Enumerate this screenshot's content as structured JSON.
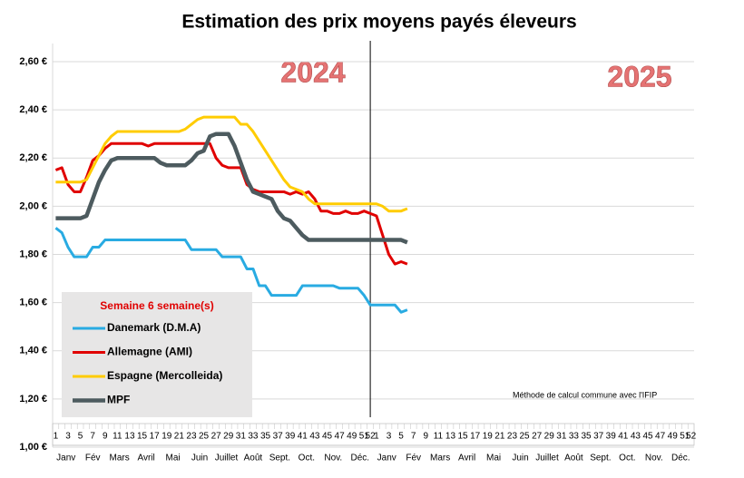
{
  "chart_data": {
    "type": "line",
    "title": "Estimation des prix moyens payés éleveurs",
    "categories": [
      "1",
      null,
      "3",
      null,
      "5",
      null,
      "7",
      null,
      "9",
      null,
      "11",
      null,
      "13",
      null,
      "15",
      null,
      "17",
      null,
      "19",
      null,
      "21",
      null,
      "23",
      null,
      "25",
      null,
      "27",
      null,
      "29",
      null,
      "31",
      null,
      "33",
      null,
      "35",
      null,
      "37",
      null,
      "39",
      null,
      "41",
      null,
      "43",
      null,
      "45",
      null,
      "47",
      null,
      "49",
      null,
      "51",
      "52",
      "1",
      null,
      "3",
      null,
      "5",
      null,
      "7",
      null,
      "9",
      null,
      "11",
      null,
      "13",
      null,
      "15",
      null,
      "17",
      null,
      "19",
      null,
      "21",
      null,
      "23",
      null,
      "25",
      null,
      "27",
      null,
      "29",
      null,
      "31",
      null,
      "33",
      null,
      "35",
      null,
      "37",
      null,
      "39",
      null,
      "41",
      null,
      "43",
      null,
      "45",
      null,
      "47",
      null,
      "49",
      null,
      "51",
      "52"
    ],
    "months": [
      "Janv",
      "Fév",
      "Mars",
      "Avril",
      "Mai",
      "Juin",
      "Juillet",
      "Août",
      "Sept.",
      "Oct.",
      "Nov.",
      "Déc.",
      "Janv",
      "Fév",
      "Mars",
      "Avril",
      "Mai",
      "Juin",
      "Juillet",
      "Août",
      "Sept.",
      "Oct.",
      "Nov.",
      "Déc."
    ],
    "annotations": [
      "2024",
      "2025",
      "Méthode de calcul commune avec l'IFIP"
    ],
    "legend_title": "Semaine 6 semaine(s)",
    "legend": "lower left",
    "grid": true,
    "ylim": [
      1.0,
      2.6
    ],
    "yticks": [
      {
        "value": 1.0,
        "label": "1,00 €"
      },
      {
        "value": 1.2,
        "label": "1,20 €"
      },
      {
        "value": 1.4,
        "label": "1,40 €"
      },
      {
        "value": 1.6,
        "label": "1,60 €"
      },
      {
        "value": 1.8,
        "label": "1,80 €"
      },
      {
        "value": 2.0,
        "label": "2,00 €"
      },
      {
        "value": 2.2,
        "label": "2,20 €"
      },
      {
        "value": 2.4,
        "label": "2,40 €"
      },
      {
        "value": 2.6,
        "label": "2,60 €"
      }
    ],
    "series": [
      {
        "name": "Danemark (D.M.A)",
        "color": "#29abe2",
        "values": [
          1.91,
          1.89,
          1.83,
          1.79,
          1.79,
          1.79,
          1.83,
          1.83,
          1.86,
          1.86,
          1.86,
          1.86,
          1.86,
          1.86,
          1.86,
          1.86,
          1.86,
          1.86,
          1.86,
          1.86,
          1.86,
          1.86,
          1.82,
          1.82,
          1.82,
          1.82,
          1.82,
          1.79,
          1.79,
          1.79,
          1.79,
          1.74,
          1.74,
          1.67,
          1.67,
          1.63,
          1.63,
          1.63,
          1.63,
          1.63,
          1.67,
          1.67,
          1.67,
          1.67,
          1.67,
          1.67,
          1.66,
          1.66,
          1.66,
          1.66,
          1.63,
          1.59,
          1.59,
          1.59,
          1.59,
          1.59,
          1.56,
          1.57,
          null,
          null,
          null,
          null,
          null,
          null,
          null,
          null,
          null,
          null,
          null,
          null,
          null,
          null,
          null,
          null,
          null,
          null,
          null,
          null,
          null,
          null,
          null,
          null,
          null,
          null,
          null,
          null,
          null,
          null,
          null,
          null,
          null,
          null,
          null,
          null,
          null,
          null,
          null,
          null,
          null,
          null,
          null,
          null,
          null,
          null
        ]
      },
      {
        "name": "Allemagne (AMI)",
        "color": "#e00000",
        "values": [
          2.15,
          2.16,
          2.09,
          2.06,
          2.06,
          2.12,
          2.19,
          2.21,
          2.24,
          2.26,
          2.26,
          2.26,
          2.26,
          2.26,
          2.26,
          2.25,
          2.26,
          2.26,
          2.26,
          2.26,
          2.26,
          2.26,
          2.26,
          2.26,
          2.26,
          2.26,
          2.2,
          2.17,
          2.16,
          2.16,
          2.16,
          2.09,
          2.07,
          2.06,
          2.06,
          2.06,
          2.06,
          2.06,
          2.05,
          2.06,
          2.05,
          2.06,
          2.03,
          1.98,
          1.98,
          1.97,
          1.97,
          1.98,
          1.97,
          1.97,
          1.98,
          1.97,
          1.96,
          1.88,
          1.8,
          1.76,
          1.77,
          1.76,
          null,
          null,
          null,
          null,
          null,
          null,
          null,
          null,
          null,
          null,
          null,
          null,
          null,
          null,
          null,
          null,
          null,
          null,
          null,
          null,
          null,
          null,
          null,
          null,
          null,
          null,
          null,
          null,
          null,
          null,
          null,
          null,
          null,
          null,
          null,
          null,
          null,
          null,
          null,
          null,
          null,
          null,
          null,
          null,
          null,
          null
        ]
      },
      {
        "name": "Espagne (Mercolleida)",
        "color": "#ffcc00",
        "values": [
          2.1,
          2.1,
          2.1,
          2.1,
          2.1,
          2.11,
          2.16,
          2.21,
          2.26,
          2.29,
          2.31,
          2.31,
          2.31,
          2.31,
          2.31,
          2.31,
          2.31,
          2.31,
          2.31,
          2.31,
          2.31,
          2.32,
          2.34,
          2.36,
          2.37,
          2.37,
          2.37,
          2.37,
          2.37,
          2.37,
          2.34,
          2.34,
          2.31,
          2.27,
          2.23,
          2.19,
          2.15,
          2.11,
          2.08,
          2.07,
          2.06,
          2.03,
          2.01,
          2.01,
          2.01,
          2.01,
          2.01,
          2.01,
          2.01,
          2.01,
          2.01,
          2.01,
          2.01,
          2.0,
          1.98,
          1.98,
          1.98,
          1.99,
          null,
          null,
          null,
          null,
          null,
          null,
          null,
          null,
          null,
          null,
          null,
          null,
          null,
          null,
          null,
          null,
          null,
          null,
          null,
          null,
          null,
          null,
          null,
          null,
          null,
          null,
          null,
          null,
          null,
          null,
          null,
          null,
          null,
          null,
          null,
          null,
          null,
          null,
          null,
          null,
          null,
          null,
          null,
          null,
          null,
          null
        ]
      },
      {
        "name": "MPF",
        "color": "#4d5b5f",
        "values": [
          1.95,
          1.95,
          1.95,
          1.95,
          1.95,
          1.96,
          2.03,
          2.1,
          2.15,
          2.19,
          2.2,
          2.2,
          2.2,
          2.2,
          2.2,
          2.2,
          2.2,
          2.18,
          2.17,
          2.17,
          2.17,
          2.17,
          2.19,
          2.22,
          2.23,
          2.29,
          2.3,
          2.3,
          2.3,
          2.25,
          2.18,
          2.11,
          2.06,
          2.05,
          2.04,
          2.03,
          1.98,
          1.95,
          1.94,
          1.91,
          1.88,
          1.86,
          1.86,
          1.86,
          1.86,
          1.86,
          1.86,
          1.86,
          1.86,
          1.86,
          1.86,
          1.86,
          1.86,
          1.86,
          1.86,
          1.86,
          1.86,
          1.85,
          null,
          null,
          null,
          null,
          null,
          null,
          null,
          null,
          null,
          null,
          null,
          null,
          null,
          null,
          null,
          null,
          null,
          null,
          null,
          null,
          null,
          null,
          null,
          null,
          null,
          null,
          null,
          null,
          null,
          null,
          null,
          null,
          null,
          null,
          null,
          null,
          null,
          null,
          null,
          null,
          null,
          null,
          null,
          null,
          null,
          null
        ]
      }
    ]
  }
}
